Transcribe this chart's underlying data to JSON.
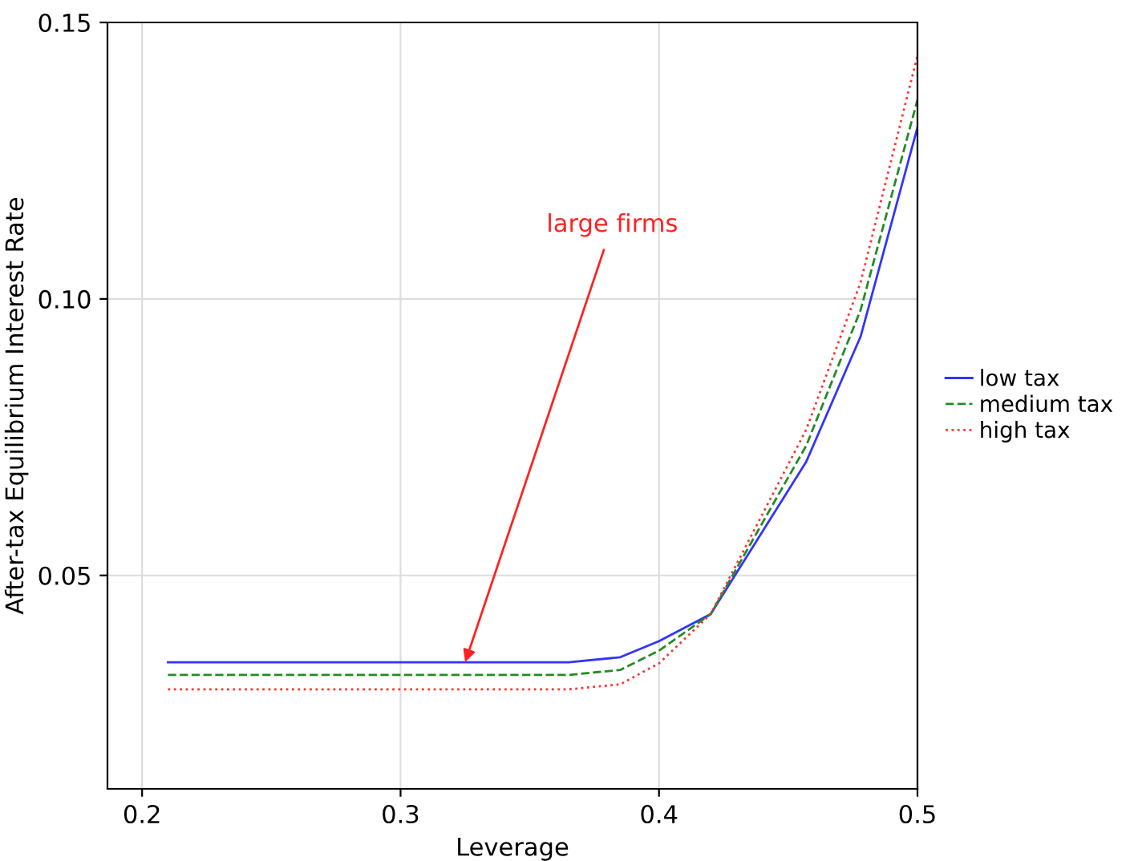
{
  "chart_data": {
    "type": "line",
    "xlabel": "Leverage",
    "ylabel": "After-tax Equilibrium Interest Rate",
    "x": [
      0.21,
      0.365,
      0.385,
      0.4,
      0.42,
      0.457,
      0.478,
      0.5
    ],
    "series": [
      {
        "name": "low tax",
        "color": "#3333ff",
        "line_style": "solid",
        "values": [
          0.0343,
          0.0343,
          0.0352,
          0.0381,
          0.043,
          0.0706,
          0.0932,
          0.131
        ]
      },
      {
        "name": "medium tax",
        "color": "#228b22",
        "line_style": "dashed",
        "values": [
          0.032,
          0.032,
          0.0329,
          0.0364,
          0.043,
          0.0735,
          0.098,
          0.136
        ]
      },
      {
        "name": "high tax",
        "color": "#ff3333",
        "line_style": "dotted",
        "values": [
          0.0294,
          0.0294,
          0.0303,
          0.0341,
          0.043,
          0.0764,
          0.103,
          0.144
        ]
      }
    ],
    "xlim": [
      0.1866,
      0.5
    ],
    "ylim": [
      0.0114,
      0.15
    ],
    "xticks": [
      0.2,
      0.3,
      0.4,
      0.5
    ],
    "yticks": [
      {
        "value": 0.05,
        "label": "0.05"
      },
      {
        "value": 0.1,
        "label": "0.10"
      },
      {
        "value": 0.15,
        "label": "0.15"
      }
    ],
    "grid": true,
    "legend": "right",
    "marker": "none",
    "annotations": [
      {
        "text": "large firms",
        "x": 0.325,
        "y": 0.0343
      }
    ]
  }
}
